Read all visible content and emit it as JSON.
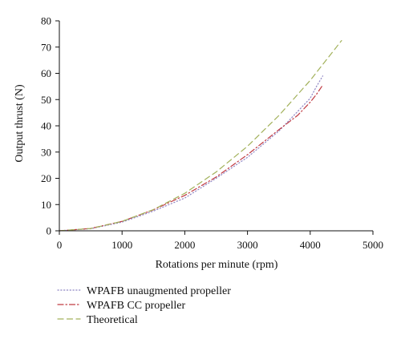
{
  "chart_data": {
    "type": "line",
    "xlabel": "Rotations per minute (rpm)",
    "ylabel": "Output thrust (N)",
    "xlim": [
      0,
      5000
    ],
    "ylim": [
      0,
      80
    ],
    "xticks": [
      0,
      1000,
      2000,
      3000,
      4000,
      5000
    ],
    "yticks": [
      0,
      10,
      20,
      30,
      40,
      50,
      60,
      70,
      80
    ],
    "grid": false,
    "legend_position": "bottom-left",
    "series": [
      {
        "name": "WPAFB unaugmented propeller",
        "color": "#8f86c4",
        "style": "dotted",
        "x": [
          0,
          500,
          1000,
          1500,
          2000,
          2500,
          3000,
          3500,
          3800,
          4000,
          4100,
          4200
        ],
        "y": [
          0,
          0.8,
          3.3,
          7.5,
          12.5,
          20,
          28,
          38,
          45.5,
          50.5,
          55,
          59
        ]
      },
      {
        "name": "WPAFB CC propeller",
        "color": "#c03a42",
        "style": "dash-dot",
        "x": [
          0,
          500,
          1000,
          1500,
          2000,
          2500,
          3000,
          3500,
          3800,
          4000,
          4100,
          4200
        ],
        "y": [
          0,
          0.9,
          3.6,
          8,
          13.5,
          20.5,
          29,
          38.5,
          44,
          49,
          52,
          55.5
        ]
      },
      {
        "name": "Theoretical",
        "color": "#a2b15a",
        "style": "dashed",
        "x": [
          0,
          500,
          1000,
          1500,
          2000,
          2500,
          3000,
          3500,
          4000,
          4500
        ],
        "y": [
          0,
          0.9,
          3.6,
          8.1,
          14.3,
          22.4,
          32.2,
          43.9,
          57.3,
          72.5
        ]
      }
    ]
  }
}
